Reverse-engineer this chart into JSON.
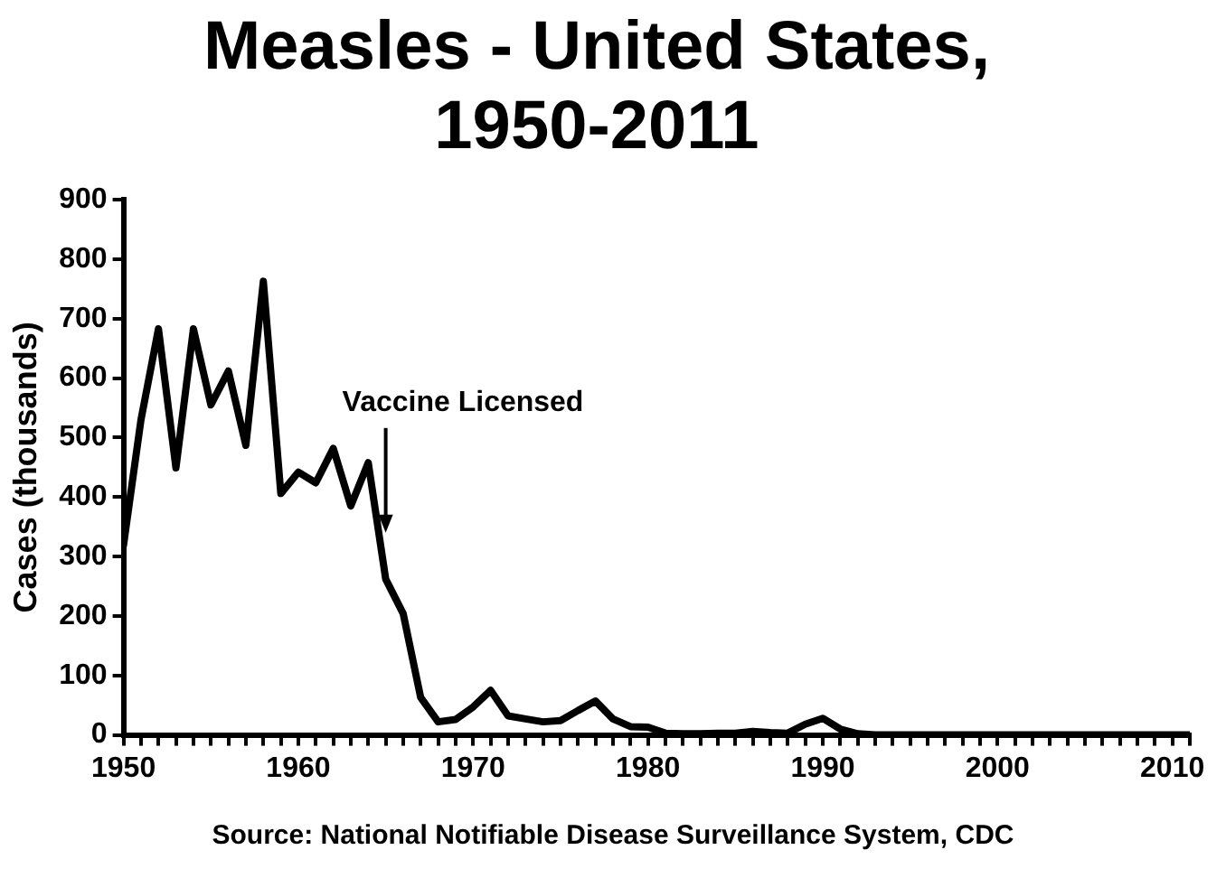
{
  "chart_data": {
    "type": "line",
    "title": "Measles - United States, 1950-2011",
    "ylabel": "Cases (thousands)",
    "x": [
      1950,
      1951,
      1952,
      1953,
      1954,
      1955,
      1956,
      1957,
      1958,
      1959,
      1960,
      1961,
      1962,
      1963,
      1964,
      1965,
      1966,
      1967,
      1968,
      1969,
      1970,
      1971,
      1972,
      1973,
      1974,
      1975,
      1976,
      1977,
      1978,
      1979,
      1980,
      1981,
      1982,
      1983,
      1984,
      1985,
      1986,
      1987,
      1988,
      1989,
      1990,
      1991,
      1992,
      1993,
      1994,
      1995,
      1996,
      1997,
      1998,
      1999,
      2000,
      2001,
      2002,
      2003,
      2004,
      2005,
      2006,
      2007,
      2008,
      2009,
      2010,
      2011
    ],
    "series": [
      {
        "color": "#000000",
        "values": [
          319,
          530,
          683,
          449,
          683,
          555,
          612,
          487,
          763,
          406,
          442,
          424,
          482,
          385,
          458,
          262,
          204,
          63,
          22,
          26,
          47,
          75,
          32,
          27,
          22,
          24,
          41,
          57,
          27,
          14,
          13,
          3,
          2,
          2,
          3,
          3,
          6,
          4,
          3,
          18,
          28,
          10,
          2,
          0,
          0,
          0,
          0,
          0,
          0,
          0,
          0,
          0,
          0,
          0,
          0,
          0,
          0,
          0,
          0,
          0,
          0,
          0
        ]
      }
    ],
    "xlim": [
      1950,
      2011
    ],
    "xticks": [
      1950,
      {
        "value": 1951,
        "label": null
      },
      {
        "value": 1952,
        "label": null
      },
      {
        "value": 1953,
        "label": null
      },
      {
        "value": 1954,
        "label": null
      },
      {
        "value": 1955,
        "label": null
      },
      {
        "value": 1956,
        "label": null
      },
      {
        "value": 1957,
        "label": null
      },
      {
        "value": 1958,
        "label": null
      },
      {
        "value": 1959,
        "label": null
      },
      1960,
      {
        "value": 1961,
        "label": null
      },
      {
        "value": 1962,
        "label": null
      },
      {
        "value": 1963,
        "label": null
      },
      {
        "value": 1964,
        "label": null
      },
      {
        "value": 1965,
        "label": null
      },
      {
        "value": 1966,
        "label": null
      },
      {
        "value": 1967,
        "label": null
      },
      {
        "value": 1968,
        "label": null
      },
      {
        "value": 1969,
        "label": null
      },
      1970,
      {
        "value": 1971,
        "label": null
      },
      {
        "value": 1972,
        "label": null
      },
      {
        "value": 1973,
        "label": null
      },
      {
        "value": 1974,
        "label": null
      },
      {
        "value": 1975,
        "label": null
      },
      {
        "value": 1976,
        "label": null
      },
      {
        "value": 1977,
        "label": null
      },
      {
        "value": 1978,
        "label": null
      },
      {
        "value": 1979,
        "label": null
      },
      1980,
      {
        "value": 1981,
        "label": null
      },
      {
        "value": 1982,
        "label": null
      },
      {
        "value": 1983,
        "label": null
      },
      {
        "value": 1984,
        "label": null
      },
      {
        "value": 1985,
        "label": null
      },
      {
        "value": 1986,
        "label": null
      },
      {
        "value": 1987,
        "label": null
      },
      {
        "value": 1988,
        "label": null
      },
      {
        "value": 1989,
        "label": null
      },
      1990,
      {
        "value": 1991,
        "label": null
      },
      {
        "value": 1992,
        "label": null
      },
      {
        "value": 1993,
        "label": null
      },
      {
        "value": 1994,
        "label": null
      },
      {
        "value": 1995,
        "label": null
      },
      {
        "value": 1996,
        "label": null
      },
      {
        "value": 1997,
        "label": null
      },
      {
        "value": 1998,
        "label": null
      },
      {
        "value": 1999,
        "label": null
      },
      2000,
      {
        "value": 2001,
        "label": null
      },
      {
        "value": 2002,
        "label": null
      },
      {
        "value": 2003,
        "label": null
      },
      {
        "value": 2004,
        "label": null
      },
      {
        "value": 2005,
        "label": null
      },
      {
        "value": 2006,
        "label": null
      },
      {
        "value": 2007,
        "label": null
      },
      {
        "value": 2008,
        "label": null
      },
      {
        "value": 2009,
        "label": null
      },
      2010,
      {
        "value": 2011,
        "label": null
      }
    ],
    "ylim": [
      0,
      900
    ],
    "yticks": [
      0,
      100,
      200,
      300,
      400,
      500,
      600,
      700,
      800,
      900
    ],
    "grid": false,
    "legend": false,
    "marker": "none",
    "line_style": "solid",
    "annotations": [
      {
        "text": "Vaccine Licensed",
        "x": 1965,
        "y": 340
      },
      "Source: National Notifiable Disease Surveillance System, CDC"
    ]
  }
}
